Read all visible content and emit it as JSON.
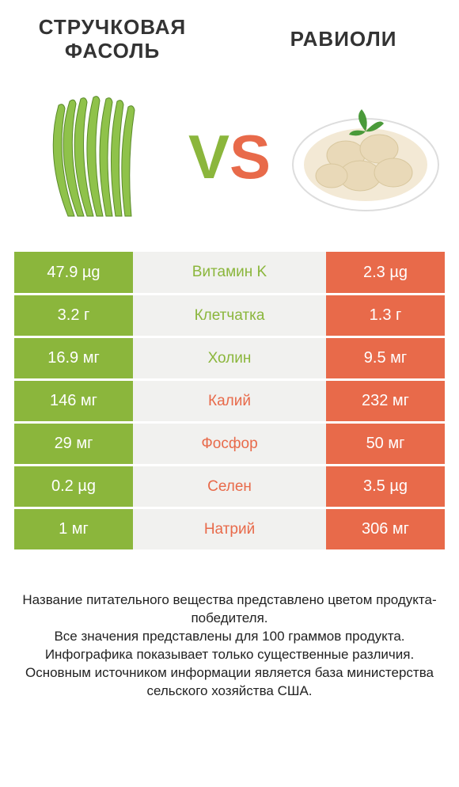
{
  "header": {
    "left_title": "СТРУЧКОВАЯ ФАСОЛЬ",
    "right_title": "РАВИОЛИ",
    "vs_v": "V",
    "vs_s": "S"
  },
  "colors": {
    "left": "#8bb63c",
    "right": "#e86a4a",
    "mid_bg": "#f1f1ef"
  },
  "rows": [
    {
      "left": "47.9 µg",
      "label": "Витамин K",
      "right": "2.3 µg",
      "winner": "left"
    },
    {
      "left": "3.2 г",
      "label": "Клетчатка",
      "right": "1.3 г",
      "winner": "left"
    },
    {
      "left": "16.9 мг",
      "label": "Холин",
      "right": "9.5 мг",
      "winner": "left"
    },
    {
      "left": "146 мг",
      "label": "Калий",
      "right": "232 мг",
      "winner": "right"
    },
    {
      "left": "29 мг",
      "label": "Фосфор",
      "right": "50 мг",
      "winner": "right"
    },
    {
      "left": "0.2 µg",
      "label": "Селен",
      "right": "3.5 µg",
      "winner": "right"
    },
    {
      "left": "1 мг",
      "label": "Натрий",
      "right": "306 мг",
      "winner": "right"
    }
  ],
  "footer": {
    "line1": "Название питательного вещества представлено цветом продукта-победителя.",
    "line2": "Все значения представлены для 100 граммов продукта.",
    "line3": "Инфографика показывает только существенные различия.",
    "line4": "Основным источником информации является база министерства сельского хозяйства США."
  }
}
